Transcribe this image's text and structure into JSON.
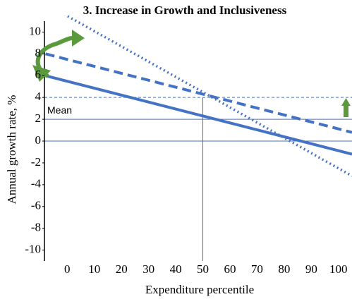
{
  "chart_data": {
    "type": "line",
    "title": "3. Increase in Growth and Inclusiveness",
    "x_label": "Expenditure percentile",
    "y_label": "Annual  growth  rate, %",
    "x": [
      -8,
      105
    ],
    "series": [
      {
        "style": "solid",
        "color": "#4472c4",
        "values": [
          6,
          -1.2
        ]
      },
      {
        "style": "dashed",
        "color": "#4472c4",
        "values": [
          8,
          0.8
        ]
      },
      {
        "style": "dotted",
        "color": "#4472c4",
        "values": [
          12.6,
          -3.2
        ]
      }
    ],
    "reference_y": [
      4,
      2,
      0
    ],
    "reference_x": 50,
    "mean_label": "Mean",
    "xlim": [
      -8.4,
      105
    ],
    "ylim": [
      -11,
      11
    ],
    "xticks": [
      0,
      10,
      20,
      30,
      40,
      50,
      60,
      70,
      80,
      90,
      100
    ],
    "yticks": [
      10,
      8,
      6,
      4,
      2,
      0,
      -2,
      -4,
      -6,
      -8,
      -10
    ]
  }
}
